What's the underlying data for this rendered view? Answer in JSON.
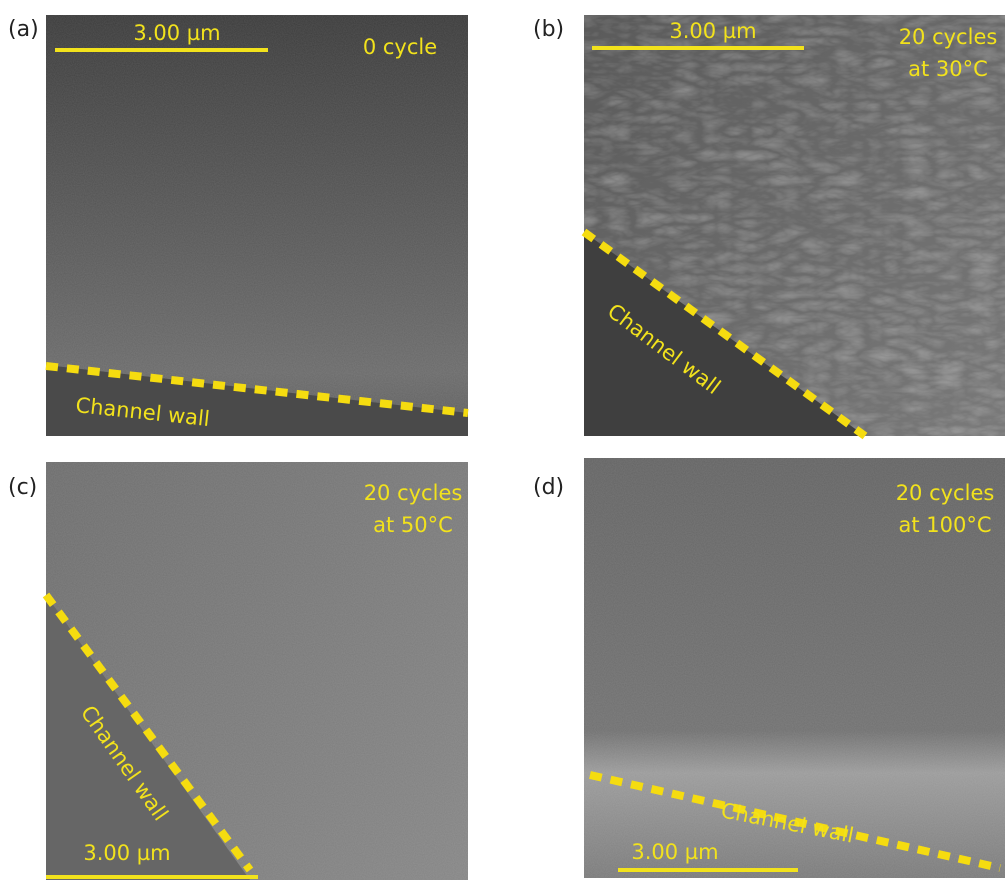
{
  "panels": [
    {
      "label": "(a)",
      "scale_bar": "3.00 µm",
      "condition": [
        "0 cycle"
      ],
      "wall_label": "Channel wall"
    },
    {
      "label": "(b)",
      "scale_bar": "3.00 µm",
      "condition": [
        "20 cycles",
        "at 30°C"
      ],
      "wall_label": "Channel wall"
    },
    {
      "label": "(c)",
      "scale_bar": "3.00 µm",
      "condition": [
        "20 cycles",
        "at 50°C"
      ],
      "wall_label": "Channel wall"
    },
    {
      "label": "(d)",
      "scale_bar": "3.00 µm",
      "condition": [
        "20 cycles",
        "at 100°C"
      ],
      "wall_label": "Channel wall"
    }
  ]
}
